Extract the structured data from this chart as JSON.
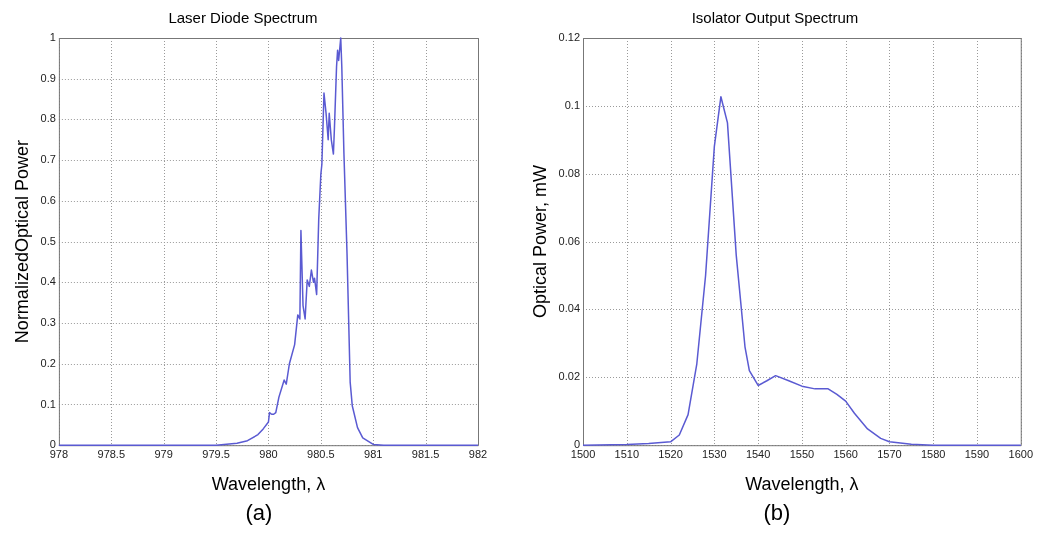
{
  "chart_data": [
    {
      "type": "line",
      "title": "Laser Diode Spectrum",
      "xlabel": "Wavelength, λ",
      "ylabel": "NormalizedOptical Power",
      "annotations": [
        "(a)"
      ],
      "x": [
        978,
        979.5,
        979.7,
        979.8,
        979.9,
        979.95,
        980.0,
        980.01,
        980.03,
        980.05,
        980.07,
        980.1,
        980.15,
        980.17,
        980.2,
        980.25,
        980.28,
        980.3,
        980.31,
        980.33,
        980.35,
        980.37,
        980.39,
        980.41,
        980.43,
        980.44,
        980.46,
        980.48,
        980.5,
        980.51,
        980.53,
        980.55,
        980.57,
        980.58,
        980.6,
        980.62,
        980.63,
        980.65,
        980.66,
        980.67,
        980.69,
        980.7,
        980.72,
        980.75,
        980.78,
        980.8,
        980.85,
        980.9,
        981.0,
        981.1,
        982
      ],
      "series": [
        {
          "color": "#5a5ad2",
          "values": [
            0,
            0,
            0.005,
            0.011,
            0.026,
            0.04,
            0.057,
            0.08,
            0.076,
            0.076,
            0.08,
            0.118,
            0.16,
            0.15,
            0.2,
            0.247,
            0.32,
            0.31,
            0.527,
            0.343,
            0.31,
            0.406,
            0.39,
            0.43,
            0.4,
            0.41,
            0.37,
            0.556,
            0.665,
            0.69,
            0.865,
            0.815,
            0.75,
            0.815,
            0.75,
            0.715,
            0.78,
            0.93,
            0.97,
            0.945,
            1.0,
            0.93,
            0.72,
            0.47,
            0.155,
            0.097,
            0.043,
            0.018,
            0.002,
            0,
            0
          ]
        }
      ],
      "xlim": [
        978,
        982
      ],
      "xticks": [
        978,
        978.5,
        979,
        979.5,
        980,
        980.5,
        981,
        981.5,
        982
      ],
      "ylim": [
        0,
        1
      ],
      "yticks": [
        0,
        0.1,
        0.2,
        0.3,
        0.4,
        0.5,
        0.6,
        0.7,
        0.8,
        0.9,
        1
      ],
      "grid": true,
      "legend": false,
      "marker": "none",
      "line_style": "solid"
    },
    {
      "type": "line",
      "title": "Isolator Output Spectrum",
      "xlabel": "Wavelength, λ",
      "ylabel": "Optical Power, mW",
      "annotations": [
        "(b)"
      ],
      "x": [
        1500,
        1510,
        1515,
        1520,
        1522,
        1524,
        1526,
        1528,
        1530,
        1531.5,
        1533,
        1535,
        1537,
        1538,
        1540,
        1542,
        1544,
        1547,
        1550,
        1553,
        1556,
        1558,
        1560,
        1562,
        1565,
        1568,
        1570,
        1575,
        1580,
        1600
      ],
      "series": [
        {
          "color": "#5a5ad2",
          "values": [
            0,
            0.0002,
            0.0005,
            0.001,
            0.003,
            0.009,
            0.024,
            0.05,
            0.088,
            0.1027,
            0.095,
            0.056,
            0.029,
            0.022,
            0.0176,
            0.019,
            0.0205,
            0.019,
            0.0174,
            0.0166,
            0.0166,
            0.015,
            0.013,
            0.0094,
            0.0048,
            0.002,
            0.001,
            0.0003,
            0,
            0
          ]
        }
      ],
      "xlim": [
        1500,
        1600
      ],
      "xticks": [
        1500,
        1510,
        1520,
        1530,
        1540,
        1550,
        1560,
        1570,
        1580,
        1590,
        1600
      ],
      "ylim": [
        0,
        0.12
      ],
      "yticks": [
        0,
        0.02,
        0.04,
        0.06,
        0.08,
        0.1,
        0.12
      ],
      "grid": true,
      "legend": false,
      "marker": "none",
      "line_style": "solid"
    }
  ]
}
